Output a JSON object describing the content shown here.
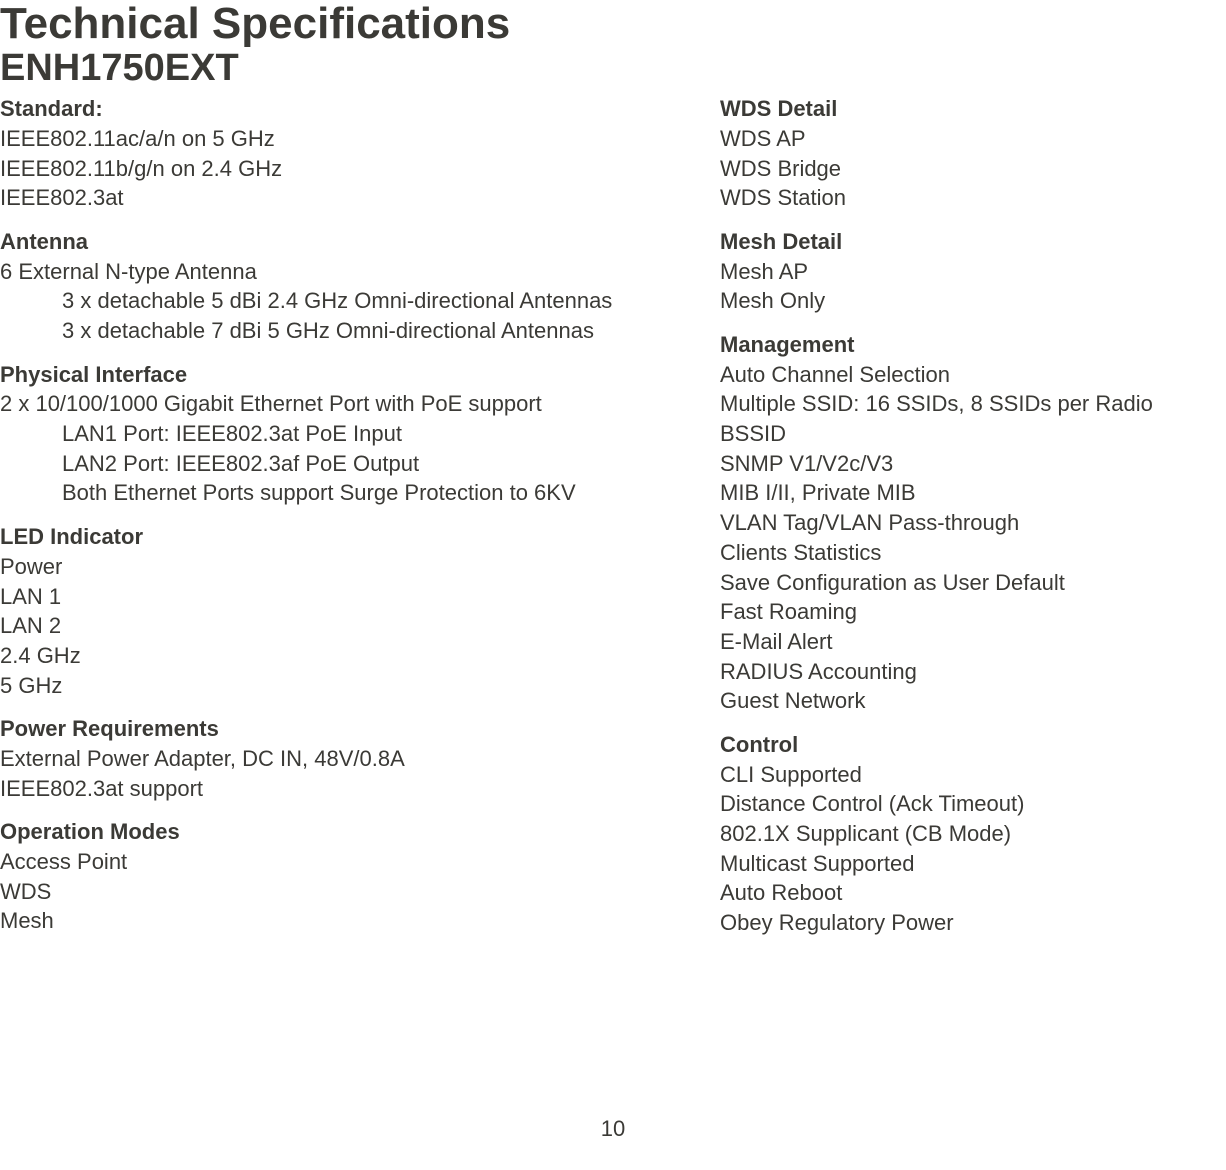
{
  "title": "Technical Specifications",
  "subtitle": "ENH1750EXT",
  "page_number": "10",
  "left": {
    "standard": {
      "head": "Standard:",
      "lines": [
        "IEEE802.11ac/a/n on 5 GHz",
        "IEEE802.11b/g/n on 2.4 GHz",
        "IEEE802.3at"
      ]
    },
    "antenna": {
      "head": "Antenna",
      "line1": "6 External N-type Antenna",
      "sub": [
        "3 x detachable 5 dBi 2.4 GHz Omni-directional Antennas",
        "3 x detachable 7 dBi 5 GHz Omni-directional Antennas"
      ]
    },
    "physical": {
      "head": "Physical Interface",
      "line1": "2 x 10/100/1000 Gigabit Ethernet Port with PoE support",
      "sub": [
        "LAN1 Port: IEEE802.3at PoE Input",
        "LAN2 Port: IEEE802.3af PoE Output",
        "Both Ethernet Ports support Surge Protection to 6KV"
      ]
    },
    "led": {
      "head": "LED Indicator",
      "lines": [
        "Power",
        "LAN 1",
        "LAN 2",
        "2.4 GHz",
        "5 GHz"
      ]
    },
    "power": {
      "head": "Power Requirements",
      "lines": [
        "External Power Adapter, DC IN, 48V/0.8A",
        "IEEE802.3at support"
      ]
    },
    "op": {
      "head": "Operation Modes",
      "lines": [
        "Access Point",
        "WDS",
        "Mesh"
      ]
    }
  },
  "right": {
    "wds": {
      "head": "WDS Detail",
      "lines": [
        "WDS AP",
        "WDS Bridge",
        "WDS Station"
      ]
    },
    "mesh": {
      "head": "Mesh Detail",
      "lines": [
        "Mesh AP",
        "Mesh Only"
      ]
    },
    "mgmt": {
      "head": "Management",
      "lines": [
        "Auto Channel Selection",
        "Multiple SSID: 16 SSIDs, 8 SSIDs per Radio",
        "BSSID",
        "SNMP V1/V2c/V3",
        "MIB I/II, Private MIB",
        "VLAN Tag/VLAN Pass-through",
        "Clients Statistics",
        "Save Configuration as User Default",
        "Fast Roaming",
        "E-Mail Alert",
        "RADIUS Accounting",
        "Guest Network"
      ]
    },
    "control": {
      "head": "Control",
      "lines": [
        "CLI Supported",
        "Distance Control (Ack Timeout)",
        "802.1X Supplicant (CB Mode)",
        "Multicast Supported",
        "Auto Reboot",
        "Obey Regulatory Power"
      ]
    }
  }
}
